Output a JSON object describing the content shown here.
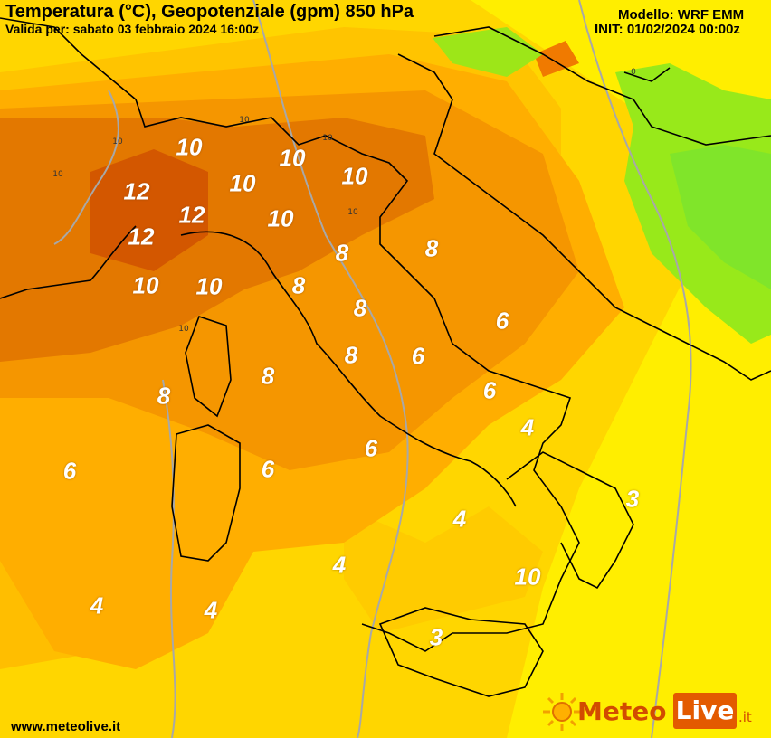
{
  "header": {
    "title": "Temperatura (°C), Geopotenziale (gpm) 850 hPa",
    "valid": "Valida per: sabato 03 febbraio 2024 16:00z",
    "model": "Modello: WRF EMM",
    "init": "INIT: 01/02/2024 00:00z"
  },
  "footer": {
    "website": "www.meteolive.it",
    "logo": {
      "meteo": "Meteo",
      "live": "Live",
      "tld": ".it"
    }
  },
  "temperature_labels": [
    "10",
    "10",
    "10",
    "12",
    "10",
    "10",
    "12",
    "12",
    "10",
    "10",
    "10",
    "8",
    "8",
    "8",
    "8",
    "8",
    "8",
    "8",
    "6",
    "6",
    "6",
    "6",
    "6",
    "6",
    "4",
    "4",
    "4",
    "4",
    "4",
    "3",
    "3"
  ],
  "isoline_labels": [
    "10",
    "10",
    "10",
    "10",
    "10",
    "10",
    "0"
  ],
  "colors": {
    "t3": "#ffe600",
    "t4": "#ffc800",
    "t6": "#ffb000",
    "t8": "#f39a00",
    "t10": "#e27a00",
    "t12": "#d45a00",
    "cold_green": "#99e817",
    "coast": "#000000",
    "geopotential_line": "#a8a8a8"
  }
}
